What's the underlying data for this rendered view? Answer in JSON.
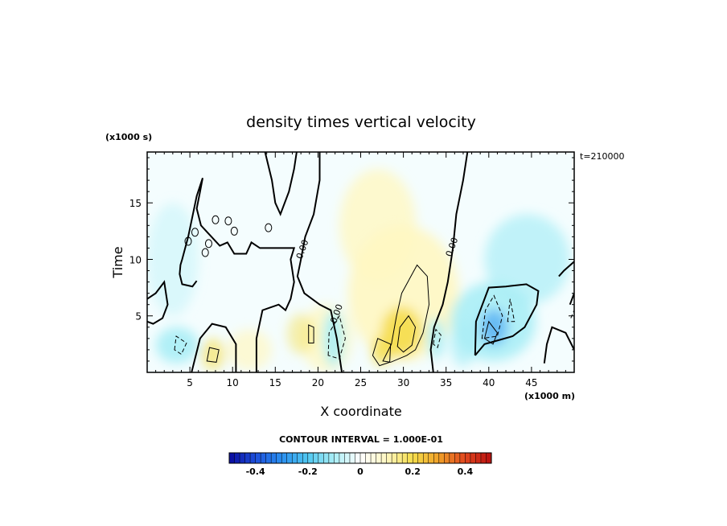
{
  "chart_data": {
    "type": "heatmap",
    "title": "density times vertical velocity",
    "xlabel": "X coordinate",
    "ylabel": "Time",
    "x_unit": "(x1000 m)",
    "y_unit": "(x1000 s)",
    "time_stamp": "t=210000",
    "contour_interval_text": "CONTOUR INTERVAL = 1.000E-01",
    "xlim": [
      0,
      50
    ],
    "ylim": [
      0,
      19.5
    ],
    "x_ticks": [
      5,
      10,
      15,
      20,
      25,
      30,
      35,
      40,
      45
    ],
    "x_tick_labels": [
      "5",
      "10",
      "15",
      "20",
      "25",
      "30",
      "35",
      "40",
      "45"
    ],
    "y_ticks": [
      5,
      10,
      15
    ],
    "y_tick_labels": [
      "5",
      "10",
      "15"
    ],
    "contour_labels": [
      {
        "text": "0.00",
        "x": 18.5,
        "y": 10.8
      },
      {
        "text": "0.00",
        "x": 22.5,
        "y": 5.1
      },
      {
        "text": "0.00",
        "x": 36.0,
        "y": 11.0
      }
    ],
    "colorbar": {
      "min": -0.5,
      "max": 0.5,
      "ticks": [
        -0.4,
        -0.2,
        0,
        0.2,
        0.4
      ],
      "tick_labels": [
        "-0.4",
        "-0.2",
        "0",
        "0.2",
        "0.4"
      ]
    },
    "features": [
      {
        "kind": "positive-max",
        "x": 30.0,
        "y": 3.5,
        "value": 0.2
      },
      {
        "kind": "positive-max",
        "x": 27.5,
        "y": 2.0,
        "value": 0.1
      },
      {
        "kind": "positive-max",
        "x": 7.5,
        "y": 1.5,
        "value": 0.1
      },
      {
        "kind": "positive-max",
        "x": 19.0,
        "y": 3.5,
        "value": 0.1
      },
      {
        "kind": "negative-min",
        "x": 40.5,
        "y": 4.0,
        "value": -0.2
      },
      {
        "kind": "negative-min",
        "x": 21.5,
        "y": 3.0,
        "value": -0.1
      },
      {
        "kind": "negative-min",
        "x": 3.5,
        "y": 2.5,
        "value": -0.1
      },
      {
        "kind": "negative-min",
        "x": 34.0,
        "y": 3.0,
        "value": -0.1
      }
    ],
    "legend": "colorbar-bottom",
    "grid": false,
    "colors": {
      "neg_strong": "#0a0a9e",
      "neg_mid": "#2a8ff0",
      "neg_light": "#aaeef6",
      "zero": "#ffffff",
      "pos_light": "#fff7c2",
      "pos_mid": "#f5dd4a",
      "pos_strong": "#b81010"
    }
  }
}
